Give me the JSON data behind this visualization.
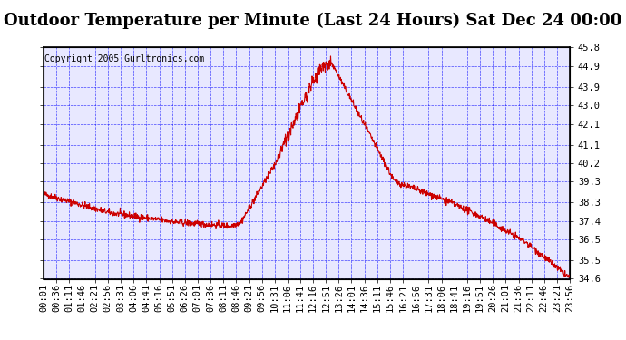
{
  "title": "Outdoor Temperature per Minute (Last 24 Hours) Sat Dec 24 00:00",
  "copyright": "Copyright 2005 Gurltronics.com",
  "ylabel_right_ticks": [
    45.8,
    44.9,
    43.9,
    43.0,
    42.1,
    41.1,
    40.2,
    39.3,
    38.3,
    37.4,
    36.5,
    35.5,
    34.6
  ],
  "ylim": [
    34.6,
    45.8
  ],
  "background_color": "#ffffff",
  "plot_bg_color": "#ffffff",
  "grid_color": "#0000ff",
  "line_color": "#cc0000",
  "title_fontsize": 13,
  "copyright_fontsize": 7,
  "tick_fontsize": 7.5,
  "x_labels": [
    "00:01",
    "00:36",
    "01:11",
    "01:46",
    "02:21",
    "02:56",
    "03:31",
    "04:06",
    "04:41",
    "05:16",
    "05:51",
    "06:26",
    "07:01",
    "07:36",
    "08:11",
    "08:46",
    "09:21",
    "09:56",
    "10:31",
    "11:06",
    "11:41",
    "12:16",
    "12:51",
    "13:26",
    "14:01",
    "14:36",
    "15:11",
    "15:46",
    "16:21",
    "16:56",
    "17:31",
    "18:06",
    "18:41",
    "19:16",
    "19:51",
    "20:26",
    "21:01",
    "21:36",
    "22:11",
    "22:46",
    "23:21",
    "23:56"
  ]
}
